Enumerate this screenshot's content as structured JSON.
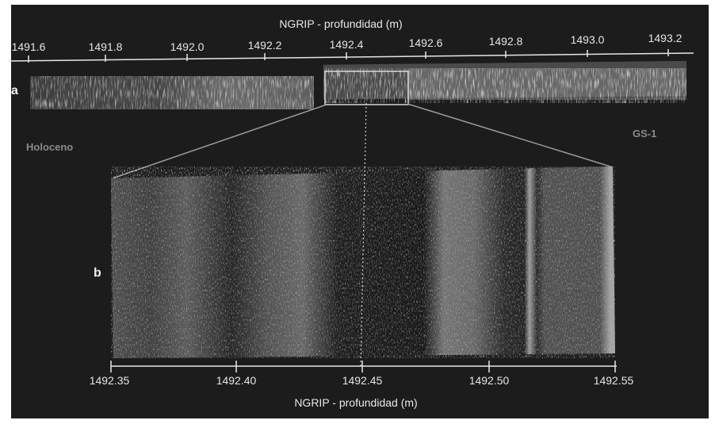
{
  "top_axis": {
    "title": "NGRIP - profundidad (m)",
    "ticks": [
      "1491.6",
      "1491.8",
      "1492.0",
      "1492.2",
      "1492.4",
      "1492.6",
      "1492.8",
      "1493.0",
      "1493.2"
    ]
  },
  "bottom_axis": {
    "title": "NGRIP - profundidad (m)",
    "ticks": [
      "1492.35",
      "1492.40",
      "1492.45",
      "1492.50",
      "1492.55"
    ]
  },
  "panels": {
    "a": "a",
    "b": "b"
  },
  "zones": {
    "left": "Holoceno",
    "right": "GS-1"
  },
  "colors": {
    "background": "#1c1c1c",
    "text": "#e6e6e6",
    "muted": "#8a8a8a"
  }
}
